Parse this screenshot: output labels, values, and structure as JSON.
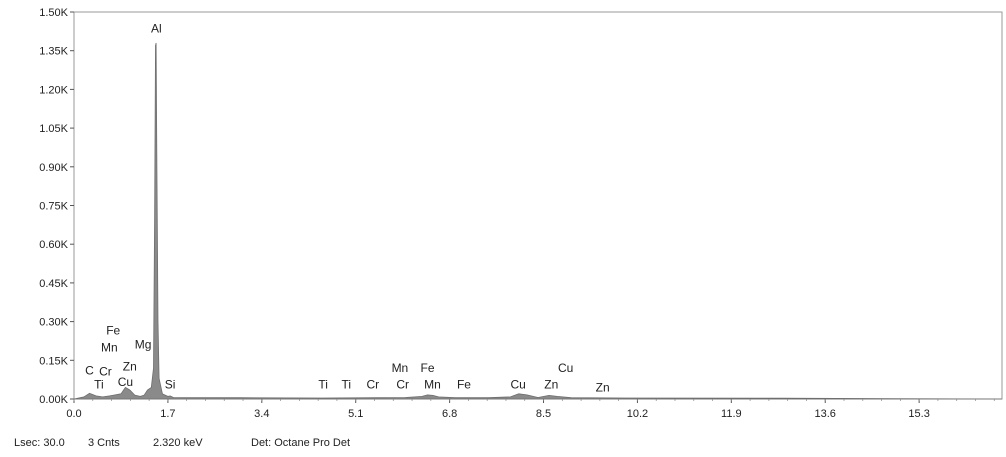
{
  "chart_data": {
    "type": "area",
    "title": "",
    "xlabel": "",
    "ylabel": "",
    "xlim": [
      0.0,
      16.8
    ],
    "ylim": [
      0,
      1500
    ],
    "grid": false,
    "x_ticks": [
      0.0,
      1.7,
      3.4,
      5.1,
      6.8,
      8.5,
      10.2,
      11.9,
      13.6,
      15.3
    ],
    "x_tick_labels": [
      "0.0",
      "1.7",
      "3.4",
      "5.1",
      "6.8",
      "8.5",
      "10.2",
      "11.9",
      "13.6",
      "15.3"
    ],
    "y_ticks": [
      0,
      150,
      300,
      450,
      600,
      750,
      900,
      1050,
      1200,
      1350,
      1500
    ],
    "y_tick_labels": [
      "0.00K",
      "0.15K",
      "0.30K",
      "0.45K",
      "0.60K",
      "0.75K",
      "0.90K",
      "1.05K",
      "1.20K",
      "1.35K",
      "1.50K"
    ],
    "series": [
      {
        "color": "#8a8a8a",
        "x": [
          0.0,
          0.18,
          0.28,
          0.4,
          0.52,
          0.64,
          0.72,
          0.85,
          0.93,
          1.01,
          1.1,
          1.2,
          1.27,
          1.33,
          1.4,
          1.44,
          1.46,
          1.475,
          1.487,
          1.5,
          1.52,
          1.54,
          1.6,
          1.7,
          1.74,
          1.8,
          2.0,
          3.0,
          4.5,
          5.5,
          6.0,
          6.3,
          6.4,
          6.5,
          6.6,
          6.9,
          7.5,
          7.9,
          8.05,
          8.2,
          8.4,
          8.6,
          8.75,
          9.0,
          10.0,
          12.8,
          16.8
        ],
        "y": [
          0,
          8,
          22,
          12,
          8,
          12,
          15,
          20,
          45,
          35,
          15,
          10,
          15,
          35,
          45,
          120,
          700,
          1370,
          1380,
          900,
          300,
          80,
          20,
          10,
          12,
          6,
          5,
          5,
          4,
          5,
          6,
          10,
          16,
          14,
          8,
          5,
          5,
          8,
          20,
          16,
          6,
          14,
          10,
          5,
          4,
          3,
          0
        ]
      }
    ],
    "peak_labels": [
      {
        "text": "Al",
        "x": 1.49,
        "y": 1420
      },
      {
        "text": "Fe",
        "x": 0.71,
        "y": 250
      },
      {
        "text": "Mn",
        "x": 0.64,
        "y": 185
      },
      {
        "text": "Mg",
        "x": 1.25,
        "y": 195
      },
      {
        "text": "C",
        "x": 0.28,
        "y": 95
      },
      {
        "text": "Cr",
        "x": 0.57,
        "y": 92
      },
      {
        "text": "Zn",
        "x": 1.01,
        "y": 110
      },
      {
        "text": "Ti",
        "x": 0.45,
        "y": 40
      },
      {
        "text": "Cu",
        "x": 0.93,
        "y": 50
      },
      {
        "text": "Si",
        "x": 1.74,
        "y": 40
      },
      {
        "text": "Ti",
        "x": 4.51,
        "y": 40
      },
      {
        "text": "Ti",
        "x": 4.93,
        "y": 40
      },
      {
        "text": "Cr",
        "x": 5.41,
        "y": 40
      },
      {
        "text": "Cr",
        "x": 5.95,
        "y": 40
      },
      {
        "text": "Mn",
        "x": 5.9,
        "y": 105
      },
      {
        "text": "Fe",
        "x": 6.4,
        "y": 105
      },
      {
        "text": "Mn",
        "x": 6.49,
        "y": 40
      },
      {
        "text": "Fe",
        "x": 7.06,
        "y": 40
      },
      {
        "text": "Cu",
        "x": 8.04,
        "y": 40
      },
      {
        "text": "Zn",
        "x": 8.64,
        "y": 40
      },
      {
        "text": "Cu",
        "x": 8.9,
        "y": 105
      },
      {
        "text": "Zn",
        "x": 9.57,
        "y": 30
      }
    ]
  },
  "status": {
    "lsec": "Lsec: 30.0",
    "counts": "3 Cnts",
    "energy": "2.320 keV",
    "detector": "Det: Octane Pro Det"
  }
}
